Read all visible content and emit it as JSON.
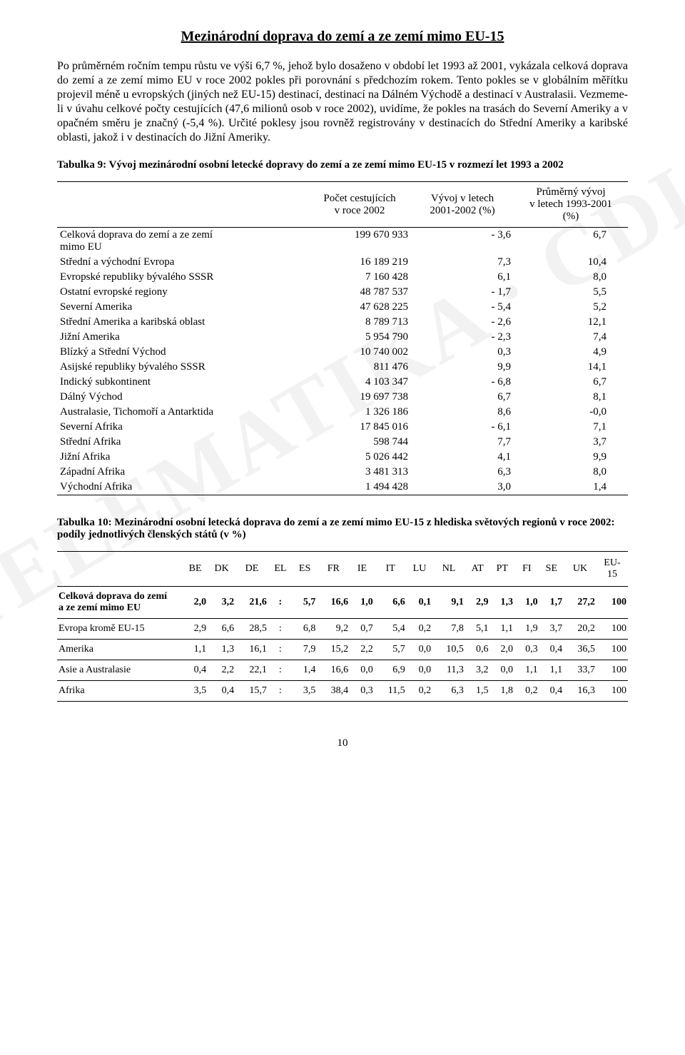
{
  "title": "Mezinárodní doprava do zemí a ze zemí mimo EU-15",
  "paragraph": "Po průměrném ročním tempu růstu ve výši 6,7 %, jehož bylo dosaženo v období let 1993 až 2001, vykázala celková doprava do zemí a ze zemí mimo EU v roce 2002 pokles při porovnání s předchozím rokem. Tento pokles se v globálním měřítku projevil méně u evropských (jiných než EU-15) destinací, destinací na Dálném Východě a destinací v Australasii. Vezmeme-li v úvahu celkové počty cestujících (47,6 milionů osob v roce 2002), uvidíme, že pokles na trasách do Severní Ameriky a v opačném směru je značný (-5,4 %). Určité poklesy jsou rovněž registrovány v destinacích do Střední Ameriky a karibské oblasti, jakož i v destinacích do Jižní Ameriky.",
  "table9": {
    "caption": "Tabulka 9: Vývoj mezinárodní osobní letecké dopravy do zemí a ze zemí mimo EU-15 v rozmezí let 1993 a 2002",
    "head": {
      "blank": "",
      "c1a": "Počet cestujících",
      "c1b": "v roce 2002",
      "c2a": "Vývoj v letech",
      "c2b": "2001-2002 (%)",
      "c3a": "Průměrný vývoj",
      "c3b": "v letech 1993-2001",
      "c3c": "(%)"
    },
    "rows": [
      {
        "region": "Celková doprava do zemí a ze zemí mimo EU",
        "pax": "199 670 933",
        "dev": "- 3,6",
        "avg": "6,7"
      },
      {
        "region": "Střední a východní Evropa",
        "pax": "16 189 219",
        "dev": "7,3",
        "avg": "10,4"
      },
      {
        "region": "Evropské republiky bývalého SSSR",
        "pax": "7 160 428",
        "dev": "6,1",
        "avg": "8,0"
      },
      {
        "region": "Ostatní evropské regiony",
        "pax": "48 787 537",
        "dev": "- 1,7",
        "avg": "5,5"
      },
      {
        "region": "Severní Amerika",
        "pax": "47 628 225",
        "dev": "- 5,4",
        "avg": "5,2"
      },
      {
        "region": "Střední Amerika a karibská oblast",
        "pax": "8 789 713",
        "dev": "- 2,6",
        "avg": "12,1"
      },
      {
        "region": "Jižní Amerika",
        "pax": "5 954 790",
        "dev": "- 2,3",
        "avg": "7,4"
      },
      {
        "region": "Blízký a Střední Východ",
        "pax": "10 740 002",
        "dev": "0,3",
        "avg": "4,9"
      },
      {
        "region": "Asijské republiky bývalého SSSR",
        "pax": "811 476",
        "dev": "9,9",
        "avg": "14,1"
      },
      {
        "region": "Indický subkontinent",
        "pax": "4 103 347",
        "dev": "- 6,8",
        "avg": "6,7"
      },
      {
        "region": "Dálný Východ",
        "pax": "19 697 738",
        "dev": "6,7",
        "avg": "8,1"
      },
      {
        "region": "Australasie, Tichomoří a Antarktida",
        "pax": "1 326 186",
        "dev": "8,6",
        "avg": "-0,0"
      },
      {
        "region": "Severní Afrika",
        "pax": "17 845 016",
        "dev": "- 6,1",
        "avg": "7,1"
      },
      {
        "region": "Střední Afrika",
        "pax": "598 744",
        "dev": "7,7",
        "avg": "3,7"
      },
      {
        "region": "Jižní Afrika",
        "pax": "5 026 442",
        "dev": "4,1",
        "avg": "9,9"
      },
      {
        "region": "Západní Afrika",
        "pax": "3 481 313",
        "dev": "6,3",
        "avg": "8,0"
      },
      {
        "region": "Východní Afrika",
        "pax": "1 494 428",
        "dev": "3,0",
        "avg": "1,4"
      }
    ]
  },
  "table10": {
    "caption": "Tabulka 10: Mezinárodní osobní letecká doprava do zemí a ze zemí mimo EU-15 z hlediska světových regionů v roce 2002: podíly jednotlivých členských států (v %)",
    "cols": [
      "BE",
      "DK",
      "DE",
      "EL",
      "ES",
      "FR",
      "IE",
      "IT",
      "LU",
      "NL",
      "AT",
      "PT",
      "FI",
      "SE",
      "UK",
      "EU-15"
    ],
    "rows": [
      {
        "label": "Celková doprava do zemí a ze zemí mimo EU",
        "vals": [
          "2,0",
          "3,2",
          "21,6",
          ":",
          "5,7",
          "16,6",
          "1,0",
          "6,6",
          "0,1",
          "9,1",
          "2,9",
          "1,3",
          "1,0",
          "1,7",
          "27,2",
          "100"
        ]
      },
      {
        "label": "Evropa kromě EU-15",
        "vals": [
          "2,9",
          "6,6",
          "28,5",
          ":",
          "6,8",
          "9,2",
          "0,7",
          "5,4",
          "0,2",
          "7,8",
          "5,1",
          "1,1",
          "1,9",
          "3,7",
          "20,2",
          "100"
        ]
      },
      {
        "label": "Amerika",
        "vals": [
          "1,1",
          "1,3",
          "16,1",
          ":",
          "7,9",
          "15,2",
          "2,2",
          "5,7",
          "0,0",
          "10,5",
          "0,6",
          "2,0",
          "0,3",
          "0,4",
          "36,5",
          "100"
        ]
      },
      {
        "label": "Asie a Australasie",
        "vals": [
          "0,4",
          "2,2",
          "22,1",
          ":",
          "1,4",
          "16,6",
          "0,0",
          "6,9",
          "0,0",
          "11,3",
          "3,2",
          "0,0",
          "1,1",
          "1,1",
          "33,7",
          "100"
        ]
      },
      {
        "label": "Afrika",
        "vals": [
          "3,5",
          "0,4",
          "15,7",
          ":",
          "3,5",
          "38,4",
          "0,3",
          "11,5",
          "0,2",
          "6,3",
          "1,5",
          "1,8",
          "0,2",
          "0,4",
          "16,3",
          "100"
        ]
      }
    ]
  },
  "watermark": "TELEMATIKA · CDIS",
  "page": "10"
}
